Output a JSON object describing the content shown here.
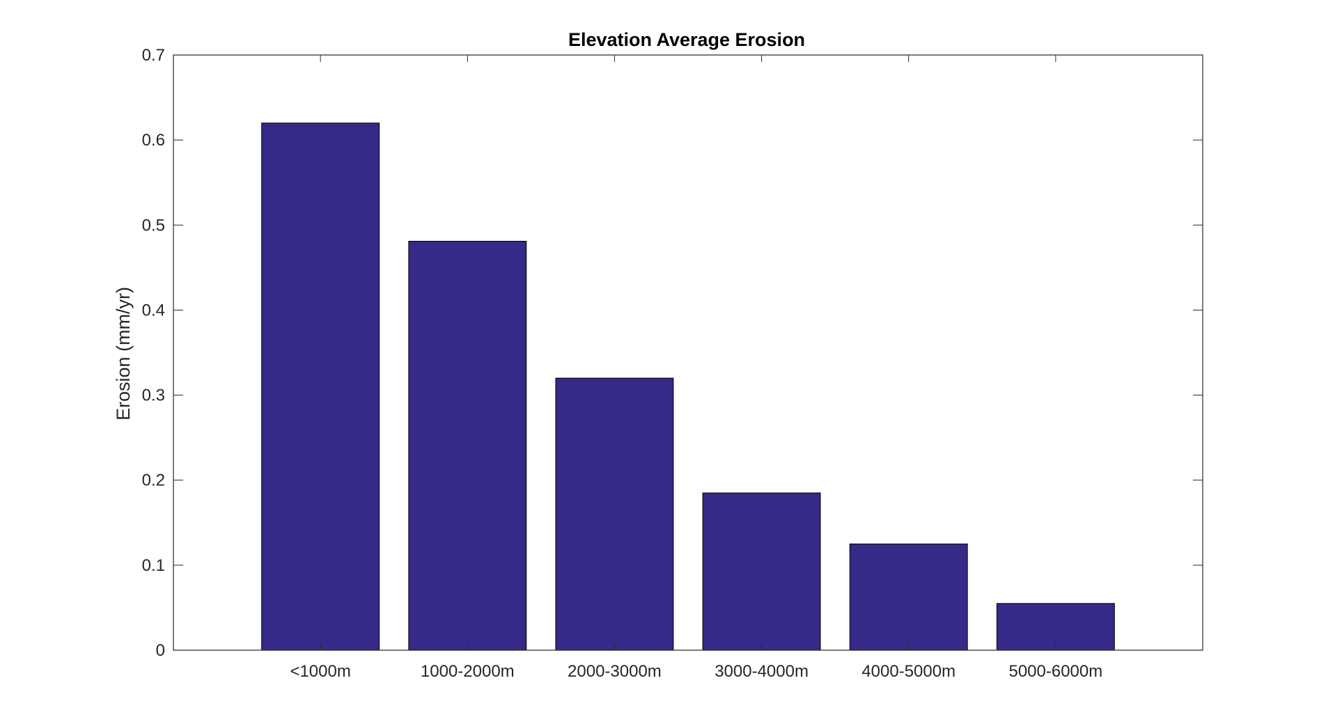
{
  "chart_data": {
    "type": "bar",
    "title": "Elevation Average Erosion",
    "xlabel": "",
    "ylabel": "Erosion (mm/yr)",
    "categories": [
      "<1000m",
      "1000-2000m",
      "2000-3000m",
      "3000-4000m",
      "4000-5000m",
      "5000-6000m"
    ],
    "values": [
      0.62,
      0.481,
      0.32,
      0.185,
      0.125,
      0.055
    ],
    "ylim": [
      0,
      0.7
    ],
    "yticks": [
      "0",
      "0.1",
      "0.2",
      "0.3",
      "0.4",
      "0.5",
      "0.6",
      "0.7"
    ],
    "bar_color": "#352a87",
    "grid": false,
    "legend": "none"
  }
}
